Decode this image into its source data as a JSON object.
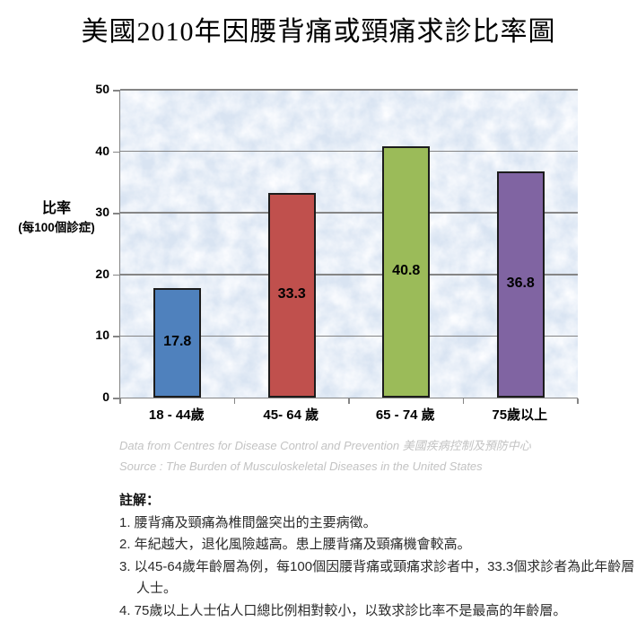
{
  "chart_data": {
    "type": "bar",
    "title": "美國2010年因腰背痛或頸痛求診比率圖",
    "categories": [
      "18 - 44歲",
      "45- 64 歲",
      "65 - 74 歲",
      "75歲以上"
    ],
    "values": [
      17.8,
      33.3,
      40.8,
      36.8
    ],
    "value_labels": [
      "17.8",
      "33.3",
      "40.8",
      "36.8"
    ],
    "colors": [
      "#4f81bd",
      "#c0504d",
      "#9bbb59",
      "#8064a2"
    ],
    "bar_border_color": "#1c1c1c",
    "ylabel_line1": "比率",
    "ylabel_line2": "(每100個診症)",
    "xlabel": "",
    "ylim": [
      0,
      50
    ],
    "yticks": [
      0,
      10,
      20,
      30,
      40,
      50
    ],
    "grid": true,
    "legend": "none",
    "value_label_position": "inside-center",
    "plot_bg_color": "#d9e4f2",
    "gridline_color": "#858585",
    "axis_color": "#858585"
  },
  "source": {
    "line1": "Data from Centres for Disease Control and Prevention 美國疾病控制及預防中心",
    "line2": "Source : The Burden of Musculoskeletal Diseases in the United States"
  },
  "notes": {
    "title": "註解：",
    "items": [
      "1. 腰背痛及頸痛為椎間盤突出的主要病徵。",
      "2. 年紀越大，退化風險越高。患上腰背痛及頸痛機會較高。",
      "3. 以45-64歲年齡層為例，每100個因腰背痛或頸痛求診者中，33.3個求診者為此年齡層人士。",
      "4. 75歲以上人士佔人口總比例相對較小，以致求診比率不是最高的年齡層。"
    ]
  }
}
